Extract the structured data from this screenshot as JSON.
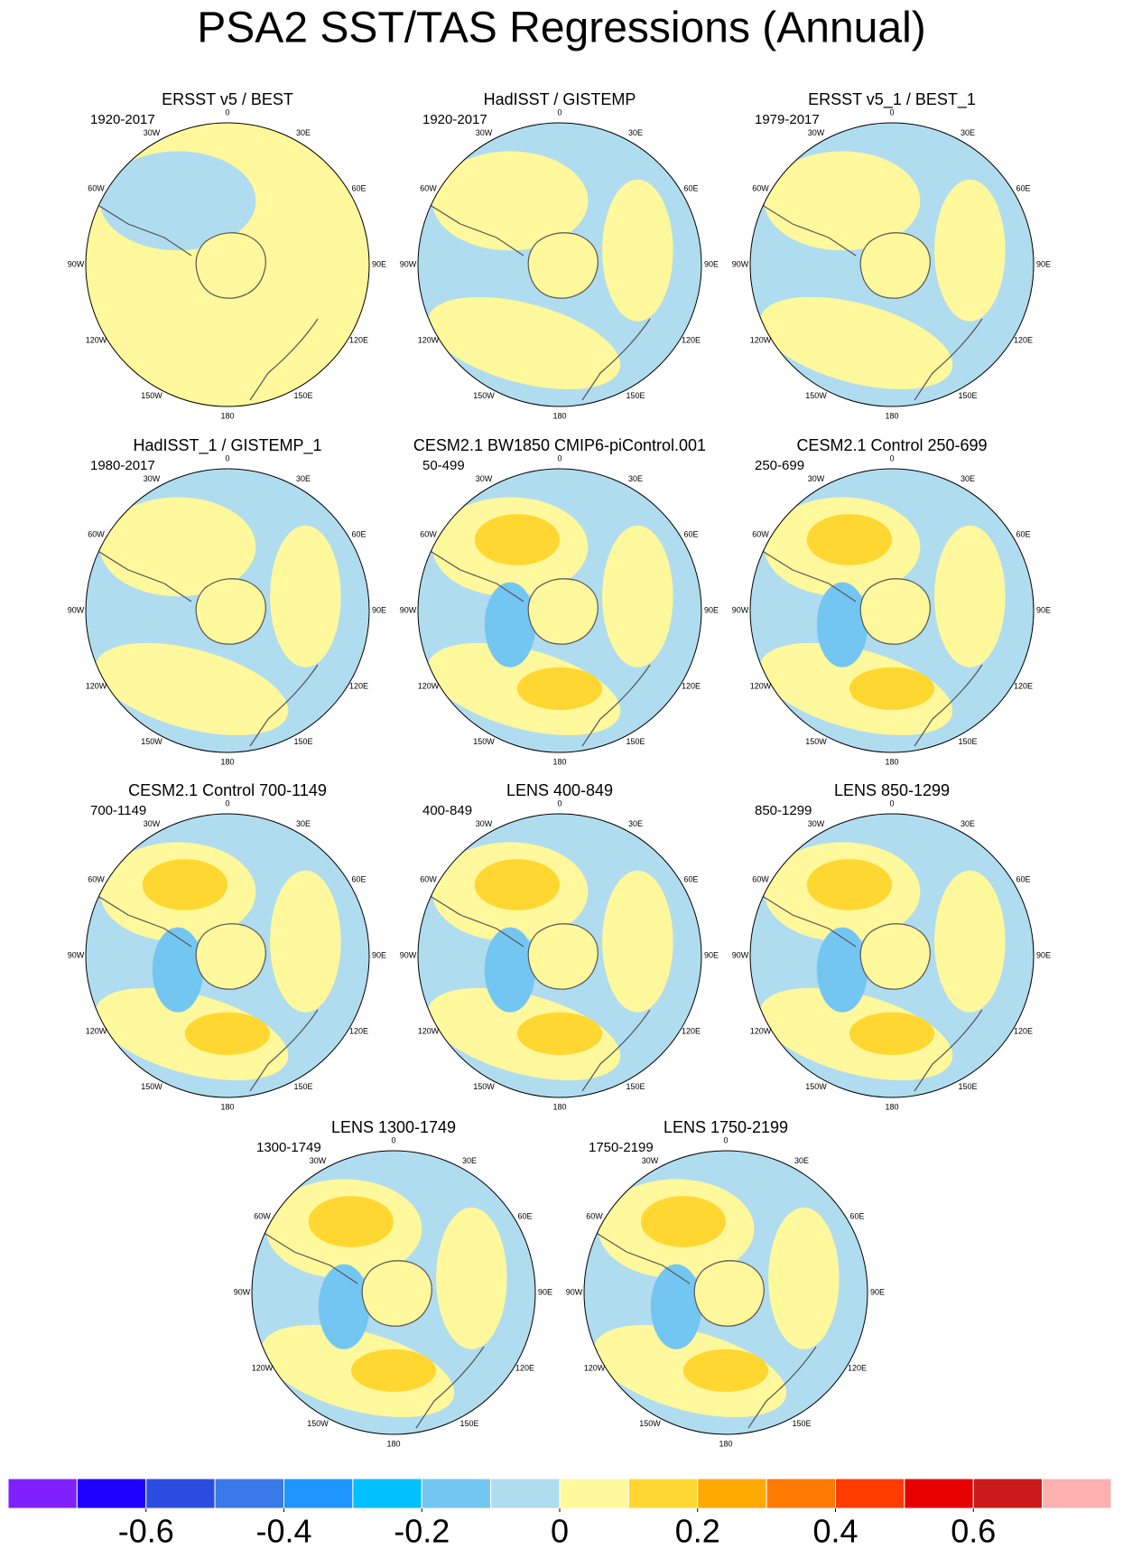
{
  "chart_data": {
    "type": "map-panels",
    "title": "PSA2 SST/TAS Regressions (Annual)",
    "lon_labels": [
      "0",
      "30E",
      "60E",
      "90E",
      "120E",
      "150E",
      "180",
      "150W",
      "120W",
      "90W",
      "60W",
      "30W"
    ],
    "panels": [
      {
        "title": "ERSST v5 / BEST",
        "period": "1920-2017"
      },
      {
        "title": "HadISST / GISTEMP",
        "period": "1920-2017"
      },
      {
        "title": "ERSST v5_1 / BEST_1",
        "period": "1979-2017"
      },
      {
        "title": "HadISST_1 / GISTEMP_1",
        "period": "1980-2017"
      },
      {
        "title": "CESM2.1 BW1850 CMIP6-piControl.001",
        "period": "50-499"
      },
      {
        "title": "CESM2.1 Control 250-699",
        "period": "250-699"
      },
      {
        "title": "CESM2.1 Control 700-1149",
        "period": "700-1149"
      },
      {
        "title": "LENS 400-849",
        "period": "400-849"
      },
      {
        "title": "LENS 850-1299",
        "period": "850-1299"
      },
      {
        "title": "LENS 1300-1749",
        "period": "1300-1749"
      },
      {
        "title": "LENS 1750-2199",
        "period": "1750-2199"
      }
    ],
    "colorbar": {
      "colors": [
        "#8020ff",
        "#1e00ff",
        "#2a4de0",
        "#3a7ae8",
        "#1e96ff",
        "#00c0ff",
        "#74c6f2",
        "#b0dcf0",
        "#fff89c",
        "#ffd730",
        "#ffaa00",
        "#ff7a00",
        "#ff3c00",
        "#e60000",
        "#cc1a1a",
        "#ffb0b0"
      ],
      "xlim": [
        -0.8,
        0.8
      ],
      "xticks": [
        -0.6,
        -0.4,
        -0.2,
        0,
        0.2,
        0.4,
        0.6
      ]
    }
  }
}
